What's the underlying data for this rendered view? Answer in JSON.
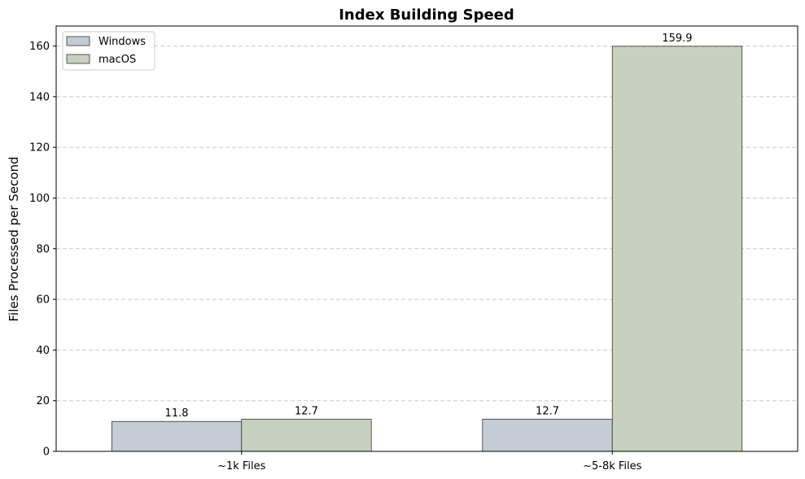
{
  "chart_data": {
    "type": "bar",
    "title": "Index Building Speed",
    "xlabel": "",
    "ylabel": "Files Processed per Second",
    "categories": [
      "~1k Files",
      "~5-8k Files"
    ],
    "series": [
      {
        "name": "Windows",
        "values": [
          11.8,
          12.7
        ],
        "color": "#c5ccd6"
      },
      {
        "name": "macOS",
        "values": [
          12.7,
          159.9
        ],
        "color": "#c8d1c0"
      }
    ],
    "data_labels": [
      [
        "11.8",
        "12.7"
      ],
      [
        "12.7",
        "159.9"
      ]
    ],
    "ylim": [
      0,
      167.9
    ],
    "yticks": [
      0,
      20,
      40,
      60,
      80,
      100,
      120,
      140,
      160
    ],
    "grid": "y-dashed",
    "legend_position": "top-left"
  }
}
